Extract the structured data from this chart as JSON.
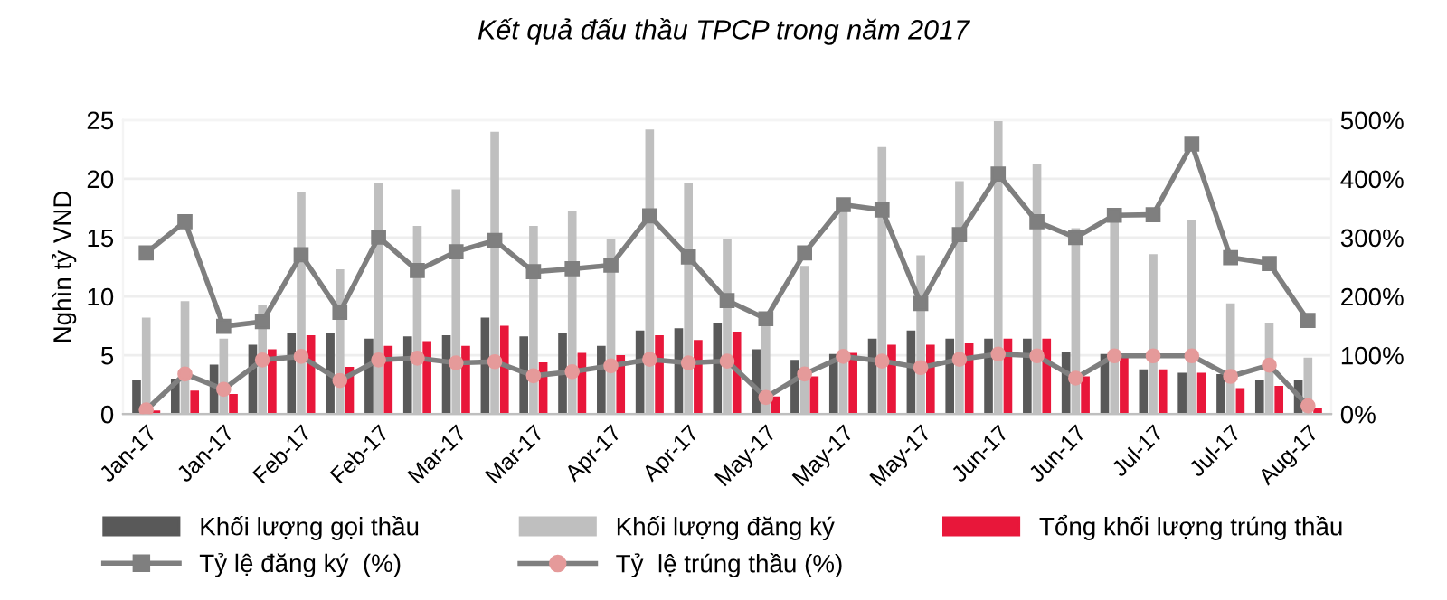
{
  "chart_data": {
    "type": "bar",
    "title": "Kết quả đấu thầu TPCP trong năm 2017",
    "ylabel": "Nghìn tỷ VND",
    "categories": [
      "Jan-17",
      null,
      "Jan-17",
      null,
      "Feb-17",
      null,
      "Feb-17",
      null,
      "Mar-17",
      null,
      "Mar-17",
      null,
      "Apr-17",
      null,
      "Apr-17",
      null,
      "May-17",
      null,
      "May-17",
      null,
      "May-17",
      null,
      "Jun-17",
      null,
      "Jun-17",
      null,
      "Jul-17",
      null,
      "Jul-17",
      null,
      "Aug-17"
    ],
    "series": [
      {
        "name": "Khối lượng gọi thầu",
        "color": "#595959",
        "values": [
          2.9,
          3.0,
          4.2,
          5.9,
          6.9,
          6.9,
          6.4,
          6.6,
          6.7,
          8.2,
          6.6,
          6.9,
          5.8,
          7.1,
          7.3,
          7.7,
          5.5,
          4.6,
          5.1,
          6.4,
          7.1,
          6.4,
          6.4,
          6.4,
          5.3,
          5.1,
          3.8,
          3.5,
          3.4,
          2.9,
          2.9
        ]
      },
      {
        "name": "Khối lượng đăng ký",
        "color": "#bfbfbf",
        "values": [
          8.2,
          9.6,
          6.4,
          9.3,
          18.9,
          12.3,
          19.6,
          16.0,
          19.1,
          24.0,
          16.0,
          17.3,
          14.9,
          24.2,
          19.6,
          14.9,
          7.5,
          12.6,
          17.5,
          22.7,
          13.5,
          19.8,
          25.0,
          21.3,
          15.8,
          16.4,
          13.6,
          16.5,
          9.4,
          7.7,
          4.8
        ]
      },
      {
        "name": "Tổng khối lượng trúng thầu",
        "color": "#e8173a",
        "values": [
          0.3,
          2.0,
          1.7,
          5.5,
          6.7,
          4.0,
          5.8,
          6.2,
          5.8,
          7.5,
          4.4,
          5.2,
          5.0,
          6.7,
          6.3,
          7.0,
          1.5,
          3.2,
          5.2,
          5.9,
          5.9,
          6.0,
          6.4,
          6.4,
          3.2,
          5.0,
          3.8,
          3.5,
          2.2,
          2.4,
          0.5
        ]
      },
      {
        "name": "Tỷ lệ đăng ký  (%)",
        "type": "line",
        "axis": "y2",
        "marker": "square",
        "color": "#7f7f7f",
        "values": [
          274,
          327,
          149,
          157,
          271,
          173,
          301,
          244,
          276,
          295,
          242,
          247,
          253,
          337,
          267,
          193,
          162,
          274,
          356,
          347,
          188,
          305,
          408,
          327,
          300,
          338,
          339,
          459,
          266,
          256,
          159
        ]
      },
      {
        "name": "Tỷ  lệ trúng thầu (%)",
        "type": "line",
        "axis": "y2",
        "marker": "circle",
        "color": "#e59a9a",
        "values": [
          7,
          68,
          42,
          92,
          98,
          57,
          92,
          95,
          87,
          89,
          65,
          72,
          82,
          93,
          87,
          90,
          28,
          68,
          98,
          90,
          79,
          93,
          102,
          99,
          61,
          99,
          99,
          99,
          64,
          83,
          14
        ]
      }
    ],
    "ylim": [
      0,
      25
    ],
    "yticks": [
      0,
      5,
      10,
      15,
      20,
      25
    ],
    "y2lim": [
      0,
      500
    ],
    "y2ticks": [
      {
        "value": 0,
        "label": "0%"
      },
      {
        "value": 100,
        "label": "100%"
      },
      {
        "value": 200,
        "label": "200%"
      },
      {
        "value": 300,
        "label": "300%"
      },
      {
        "value": 400,
        "label": "400%"
      },
      {
        "value": 500,
        "label": "500%"
      }
    ],
    "grid": "y",
    "legend": "bottom"
  }
}
